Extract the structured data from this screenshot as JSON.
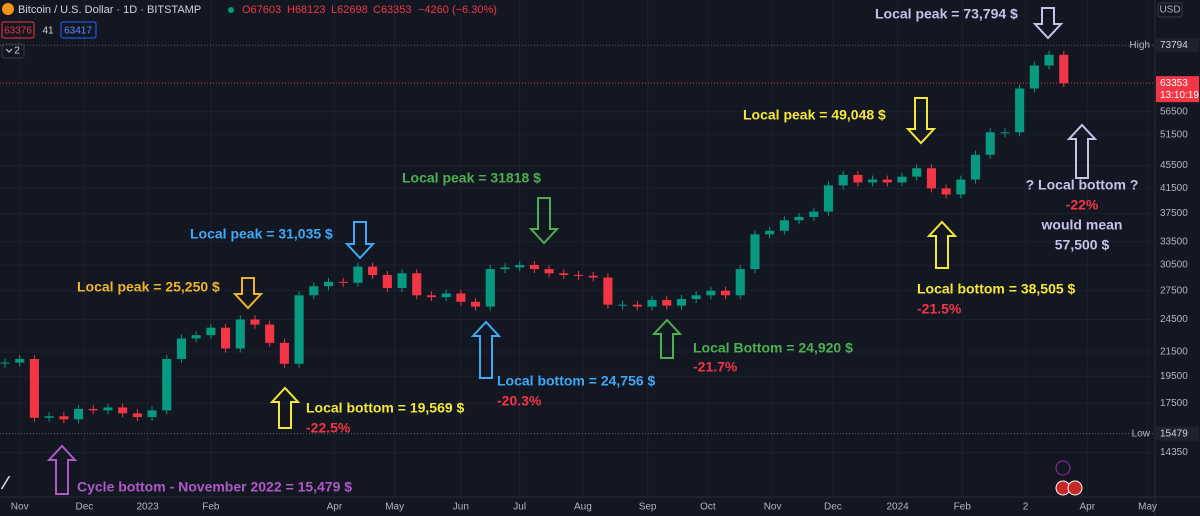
{
  "chart_data": {
    "type": "candlestick",
    "title": "Bitcoin / U.S. Dollar · 1D · BITSTAMP",
    "header": {
      "open": "O67603",
      "high": "H68123",
      "low": "L62698",
      "close": "C63353",
      "change": "−4260 (−6.30%)",
      "sell": "63376",
      "spread": "41",
      "buy": "63417",
      "indicators": "2"
    },
    "currency": "USD",
    "values": [
      20600,
      20900,
      16500,
      16600,
      16400,
      17100,
      17000,
      17200,
      16800,
      16550,
      17000,
      20900,
      22700,
      23000,
      23700,
      21800,
      24500,
      24000,
      22300,
      20500,
      27000,
      28000,
      28500,
      28400,
      30300,
      29300,
      27800,
      29500,
      27000,
      26800,
      27200,
      26300,
      25800,
      30000,
      30200,
      30500,
      30000,
      29500,
      29300,
      29200,
      29000,
      26000,
      26000,
      25800,
      26500,
      25900,
      26600,
      27000,
      27500,
      27000,
      30000,
      34500,
      35000,
      36500,
      37000,
      37800,
      42000,
      43800,
      42500,
      43000,
      42500,
      43500,
      45000,
      41500,
      40500,
      43000,
      47500,
      52000,
      52000,
      62000,
      68000,
      71000,
      63353
    ],
    "up_color": "#089981",
    "down_color": "#f23645",
    "xlim": [
      0,
      78
    ],
    "xticks": [
      {
        "value": 1.0,
        "label": "Nov"
      },
      {
        "value": 5.4,
        "label": "Dec"
      },
      {
        "value": 9.7,
        "label": "2023"
      },
      {
        "value": 14.0,
        "label": "Feb"
      },
      {
        "value": 22.4,
        "label": "Apr"
      },
      {
        "value": 26.5,
        "label": "May"
      },
      {
        "value": 31.0,
        "label": "Jun"
      },
      {
        "value": 35.0,
        "label": "Jul"
      },
      {
        "value": 39.3,
        "label": "Aug"
      },
      {
        "value": 43.7,
        "label": "Sep"
      },
      {
        "value": 47.8,
        "label": "Oct"
      },
      {
        "value": 52.2,
        "label": "Nov"
      },
      {
        "value": 56.3,
        "label": "Dec"
      },
      {
        "value": 60.7,
        "label": "2024"
      },
      {
        "value": 65.1,
        "label": "Feb"
      },
      {
        "value": 69.4,
        "label": "2"
      },
      {
        "value": 73.6,
        "label": "Apr"
      },
      {
        "value": 77.7,
        "label": "May"
      }
    ],
    "ylim": [
      12000,
      88500
    ],
    "log_scale": true,
    "grid": true,
    "yticks": [
      56500,
      51500,
      45500,
      41500,
      37500,
      33500,
      30500,
      27500,
      24500,
      21500,
      19500,
      17500,
      14350
    ],
    "high": {
      "label": "High",
      "value": 73794
    },
    "low": {
      "label": "Low",
      "value": 15479
    },
    "last": {
      "value": 63353,
      "countdown": "13:10:19"
    },
    "annotations": [
      "Local peak = 73,794 $",
      "Local peak = 49,048 $",
      "Local bottom = 38,505 $",
      "-21.5%",
      "? Local bottom ?",
      "-22%",
      "would mean",
      "57,500 $",
      "Local peak = 31818 $",
      "Local Bottom = 24,920 $",
      "-21.7%",
      "Local peak = 31,035 $",
      "Local bottom = 24,756 $",
      "-20.3%",
      "Local peak = 25,250 $",
      "Local bottom = 19,569 $",
      "-22.5%",
      "Cycle bottom - November 2022 = 15,479 $"
    ]
  }
}
